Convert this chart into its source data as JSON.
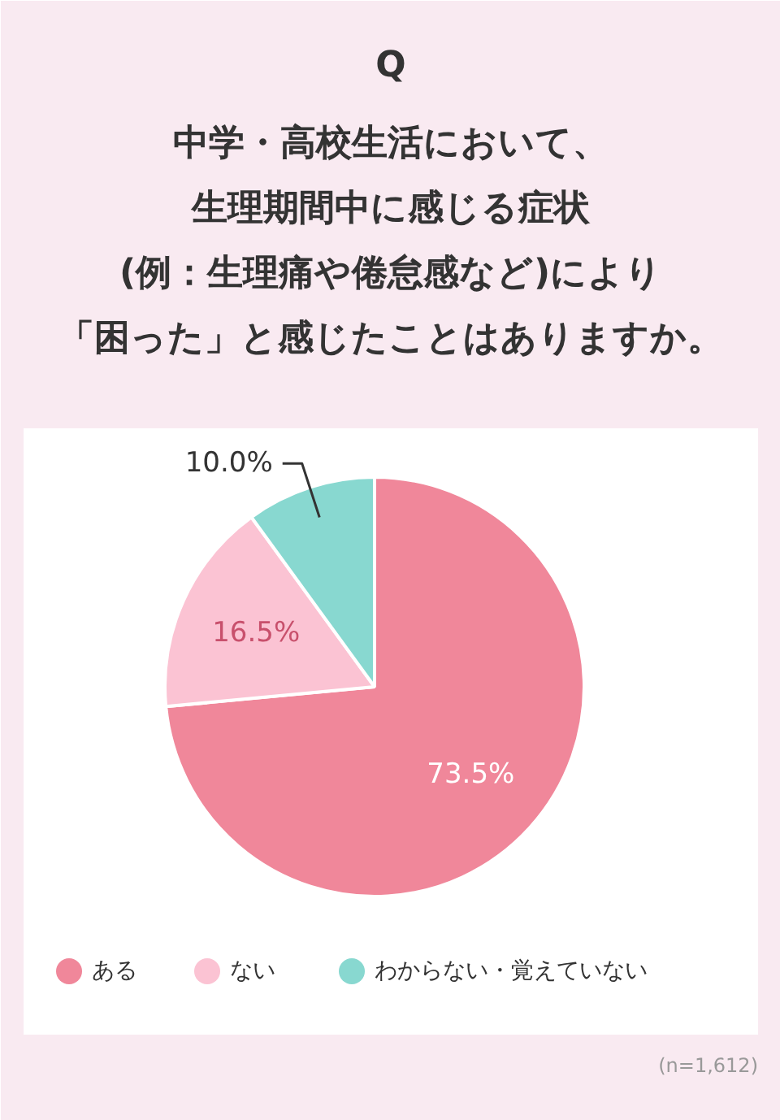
{
  "chart_data": {
    "type": "pie",
    "title": "Q",
    "subtitle": [
      "中学・高校生活において、",
      "生理期間中に感じる症状",
      "(例：生理痛や倦怠感など)により",
      "「困った」と感じたことはありますか。"
    ],
    "categories": [
      "ある",
      "ない",
      "わからない・覚えていない"
    ],
    "values": [
      73.5,
      16.5,
      10.0
    ],
    "colors": [
      "#f0879a",
      "#fbc3d3",
      "#88d8d0"
    ],
    "value_labels": [
      "73.5%",
      "16.5%",
      "10.0%"
    ],
    "legend": "bottom",
    "annotations": [
      "(n=1,612)"
    ]
  }
}
